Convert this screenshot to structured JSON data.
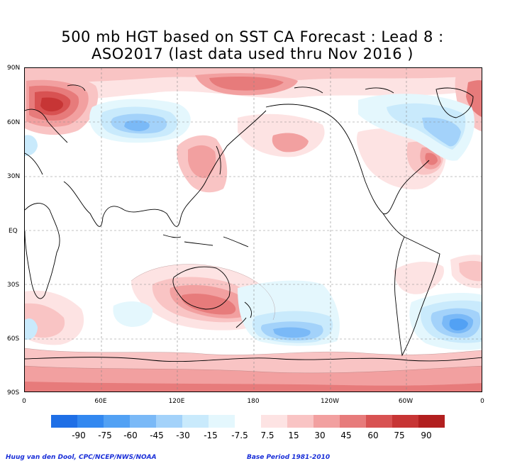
{
  "title_line1": "500 mb HGT based on SST CA Forecast : Lead 8 :",
  "title_line2": "ASO2017 (last data used thru Nov 2016 )",
  "lat_labels": [
    "90N",
    "60N",
    "30N",
    "EQ",
    "30S",
    "60S",
    "90S"
  ],
  "lon_labels": [
    "0",
    "60E",
    "120E",
    "180",
    "120W",
    "60W",
    "0"
  ],
  "colorbar": {
    "labels": [
      "-90",
      "-75",
      "-60",
      "-45",
      "-30",
      "-15",
      "-7.5",
      "7.5",
      "15",
      "30",
      "45",
      "60",
      "75",
      "90"
    ],
    "colors": [
      "#1f6fe6",
      "#3388f0",
      "#52a1f4",
      "#7ab9f7",
      "#a3d2fa",
      "#c9eafc",
      "#e4f7fd",
      "#ffffff",
      "#fde3e3",
      "#f9c4c4",
      "#f2a0a0",
      "#e77b7b",
      "#d85252",
      "#c73535",
      "#b21f1f"
    ]
  },
  "footer_left": "Huug van den Dool, CPC/NCEP/NWS/NOAA",
  "footer_right": "Base Period 1981-2010"
}
